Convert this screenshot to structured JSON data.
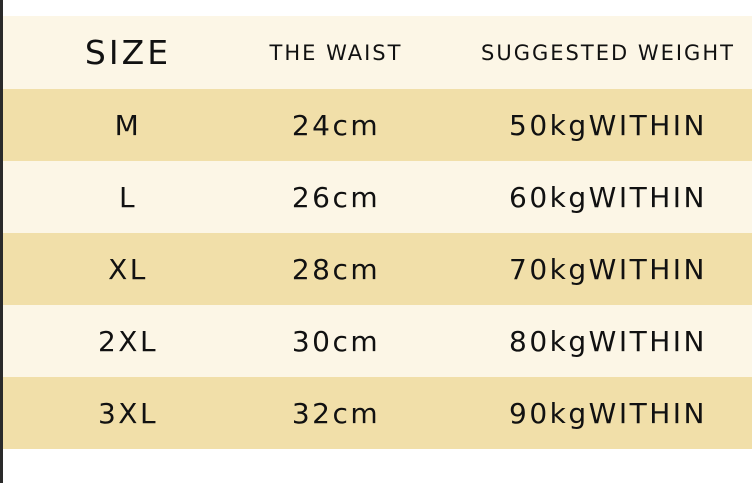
{
  "headers": [
    "SIZE",
    "THE WAIST",
    "SUGGESTED WEIGHT"
  ],
  "rows": [
    [
      "M",
      "24cm",
      "50kgWITHIN"
    ],
    [
      "L",
      "26cm",
      "60kgWITHIN"
    ],
    [
      "XL",
      "28cm",
      "70kgWITHIN"
    ],
    [
      "2XL",
      "30cm",
      "80kgWITHIN"
    ],
    [
      "3XL",
      "32cm",
      "90kgWITHIN"
    ]
  ],
  "colors": {
    "light_row": "#fcf6e6",
    "dark_row": "#f1dfa9",
    "text": "#111111"
  }
}
